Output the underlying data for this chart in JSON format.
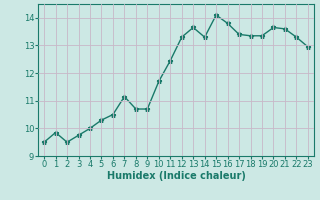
{
  "x": [
    0,
    1,
    2,
    3,
    4,
    5,
    6,
    7,
    8,
    9,
    10,
    11,
    12,
    13,
    14,
    15,
    16,
    17,
    18,
    19,
    20,
    21,
    22,
    23
  ],
  "y": [
    9.5,
    9.85,
    9.5,
    9.75,
    10.0,
    10.3,
    10.5,
    11.15,
    10.7,
    10.7,
    11.7,
    12.45,
    13.3,
    13.65,
    13.3,
    14.1,
    13.8,
    13.4,
    13.35,
    13.35,
    13.65,
    13.6,
    13.3,
    12.95
  ],
  "line_color": "#1a7a6a",
  "marker": "*",
  "marker_size": 3.5,
  "bg_color": "#cce8e4",
  "grid_color": "#c8b8c8",
  "xlabel": "Humidex (Indice chaleur)",
  "ylabel": "",
  "xlim": [
    -0.5,
    23.5
  ],
  "ylim": [
    9.0,
    14.5
  ],
  "yticks": [
    9,
    10,
    11,
    12,
    13,
    14
  ],
  "xticks": [
    0,
    1,
    2,
    3,
    4,
    5,
    6,
    7,
    8,
    9,
    10,
    11,
    12,
    13,
    14,
    15,
    16,
    17,
    18,
    19,
    20,
    21,
    22,
    23
  ],
  "xlabel_fontsize": 7,
  "tick_fontsize": 6,
  "line_width": 1.0
}
